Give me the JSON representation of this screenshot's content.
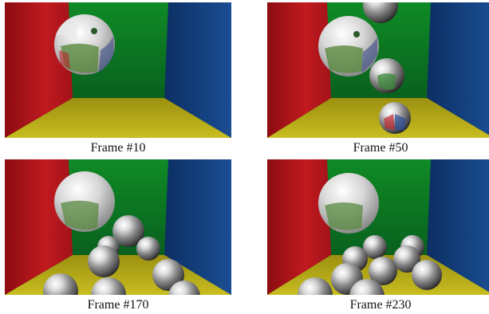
{
  "figure": {
    "panels": [
      {
        "caption": "Frame #10"
      },
      {
        "caption": "Frame #50"
      },
      {
        "caption": "Frame #170"
      },
      {
        "caption": "Frame #230"
      }
    ]
  },
  "scene_colors": {
    "left_wall": "#b8141a",
    "back_wall": "#0d7a1f",
    "right_wall": "#13407d",
    "floor": "#b4aa16"
  }
}
